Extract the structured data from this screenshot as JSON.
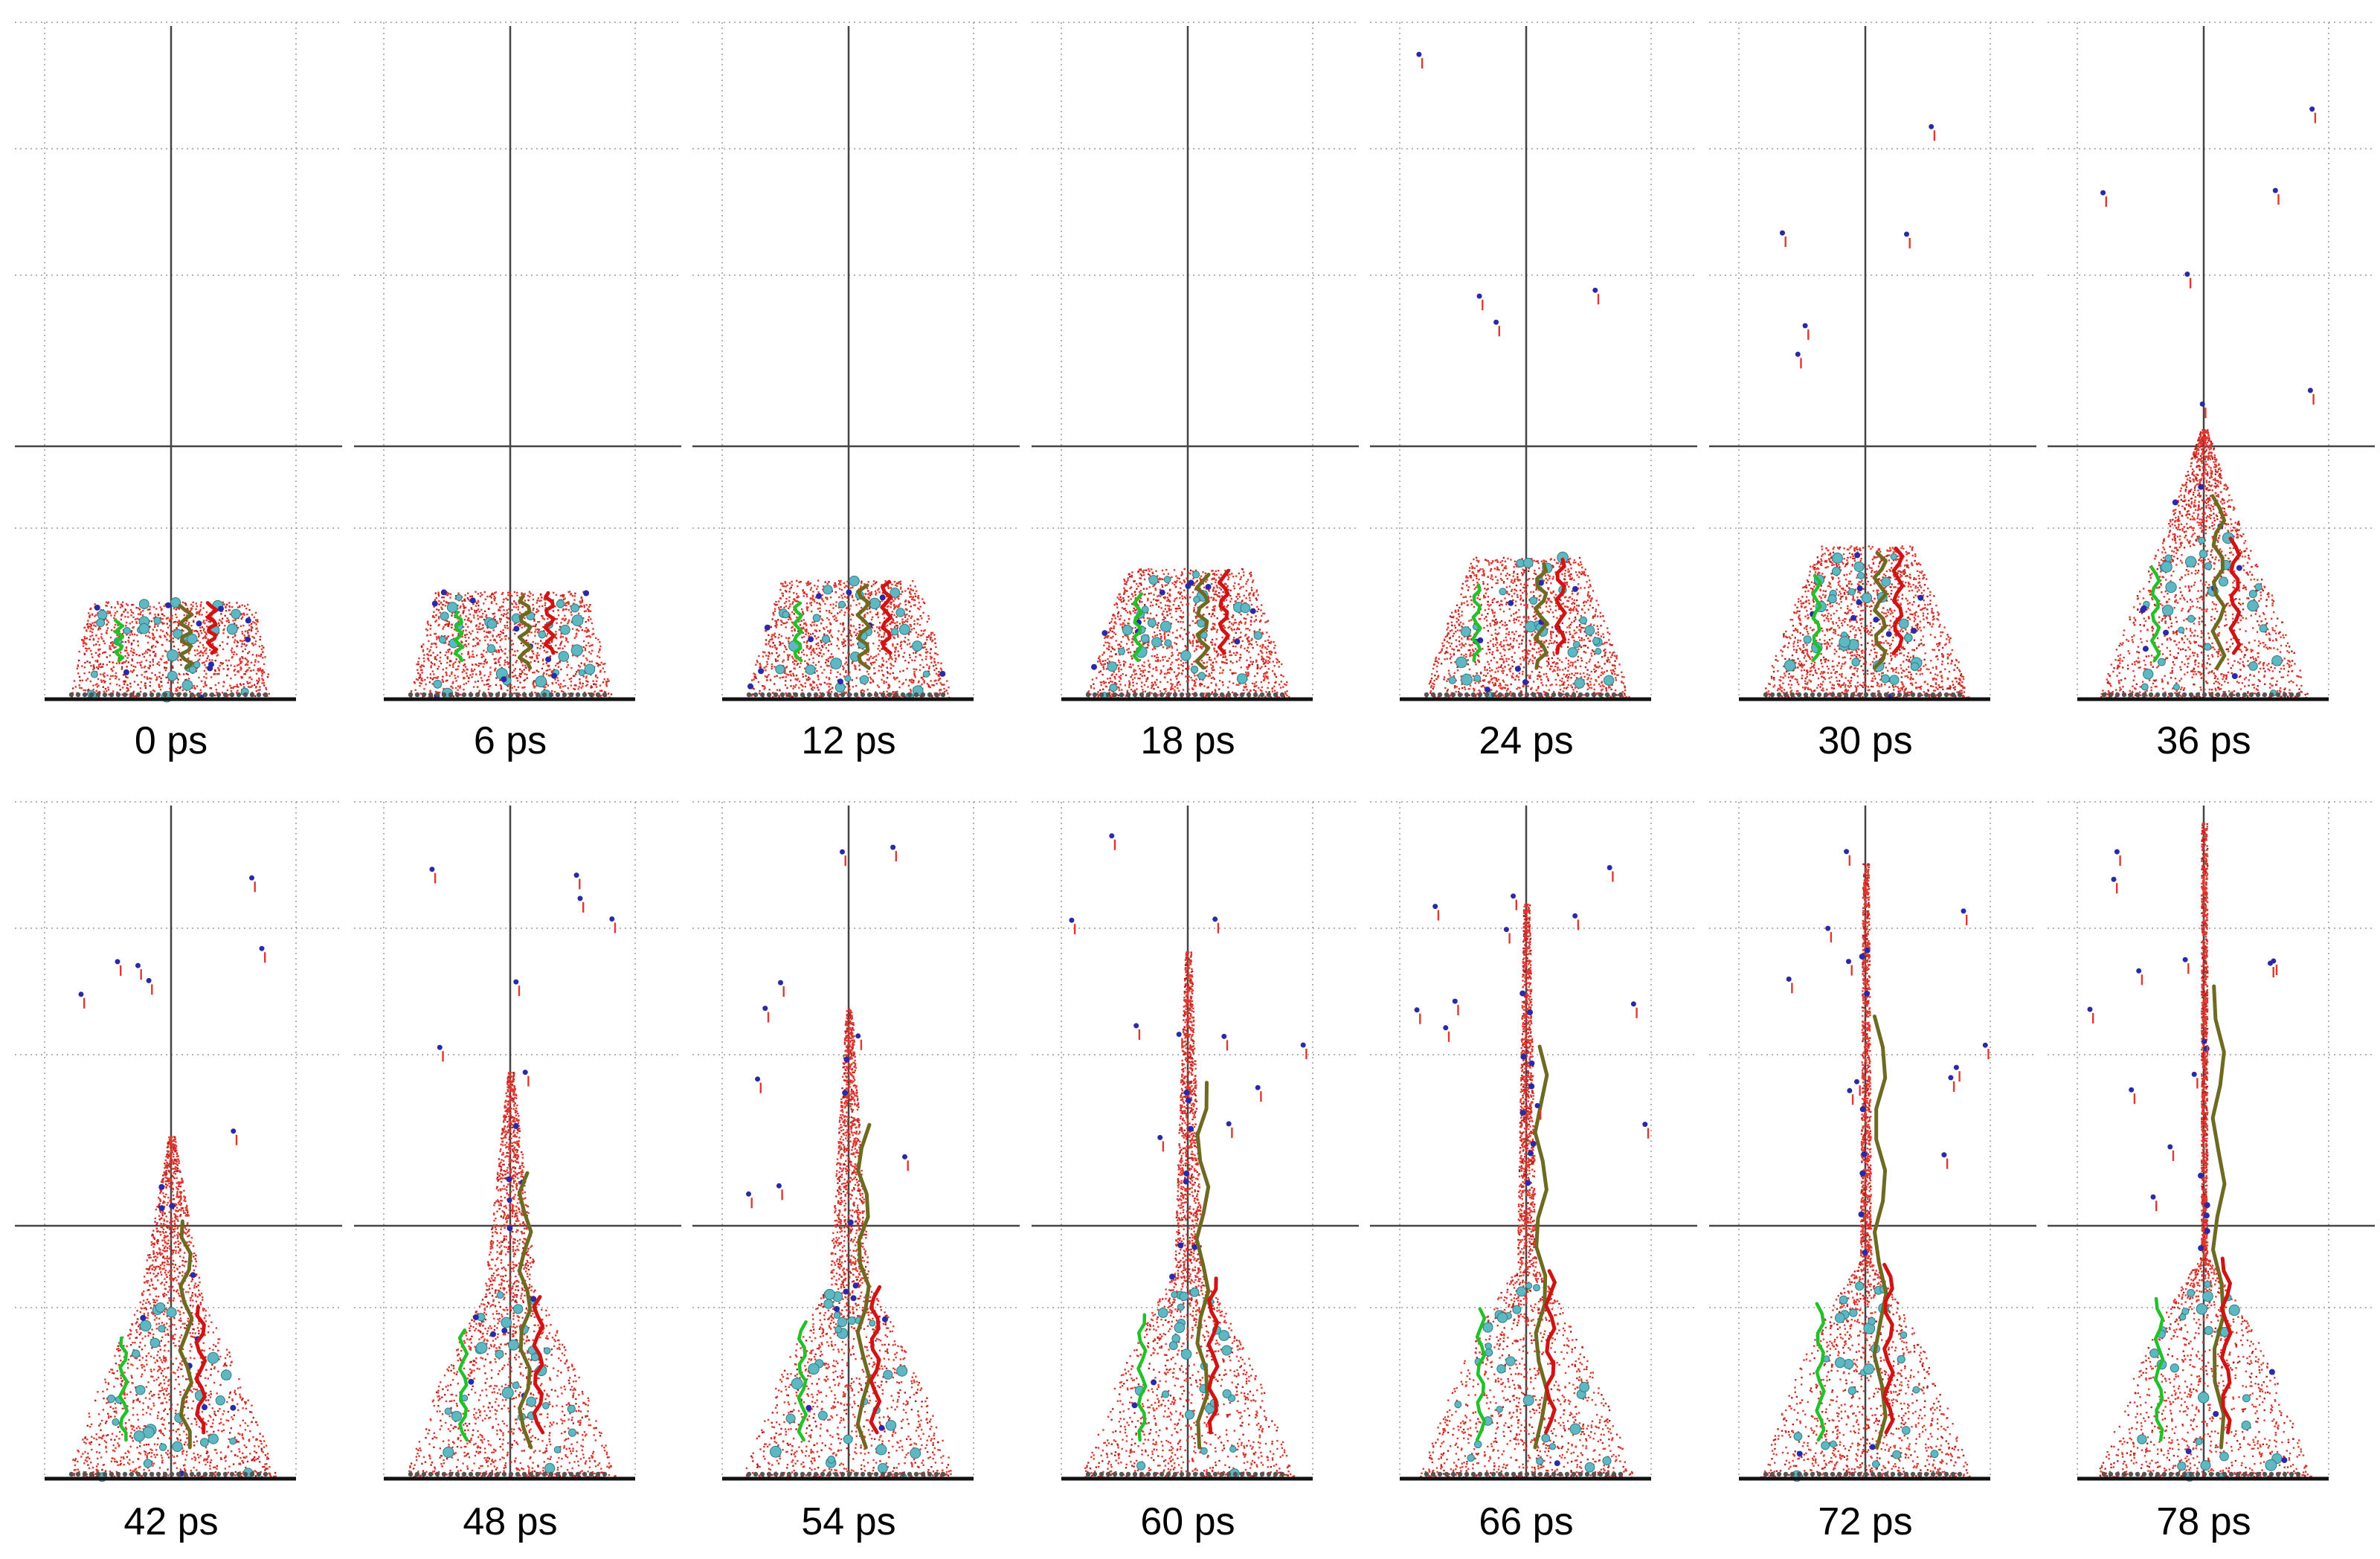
{
  "figure": {
    "frames": [
      {
        "label": "0 ps",
        "time_ps": 0,
        "stage": 0.0
      },
      {
        "label": "6 ps",
        "time_ps": 6,
        "stage": 0.08
      },
      {
        "label": "12 ps",
        "time_ps": 12,
        "stage": 0.17
      },
      {
        "label": "18 ps",
        "time_ps": 18,
        "stage": 0.26
      },
      {
        "label": "24 ps",
        "time_ps": 24,
        "stage": 0.35
      },
      {
        "label": "30 ps",
        "time_ps": 30,
        "stage": 0.44
      },
      {
        "label": "36 ps",
        "time_ps": 36,
        "stage": 0.52
      },
      {
        "label": "42 ps",
        "time_ps": 42,
        "stage": 0.61
      },
      {
        "label": "48 ps",
        "time_ps": 48,
        "stage": 0.69
      },
      {
        "label": "54 ps",
        "time_ps": 54,
        "stage": 0.77
      },
      {
        "label": "60 ps",
        "time_ps": 60,
        "stage": 0.84
      },
      {
        "label": "66 ps",
        "time_ps": 66,
        "stage": 0.9
      },
      {
        "label": "72 ps",
        "time_ps": 72,
        "stage": 0.95
      },
      {
        "label": "78 ps",
        "time_ps": 78,
        "stage": 1.0
      }
    ],
    "colors": {
      "water": "#e0382f",
      "water_dark": "#b81e1e",
      "ion_cyan": "#5fb7c2",
      "ion_blue": "#2a2aa8",
      "chain_green": "#22c12a",
      "chain_olive": "#6e6a22",
      "chain_red": "#d01414",
      "substrate": "#555555",
      "axis": "#444444",
      "grid": "#9a9a9a"
    }
  }
}
